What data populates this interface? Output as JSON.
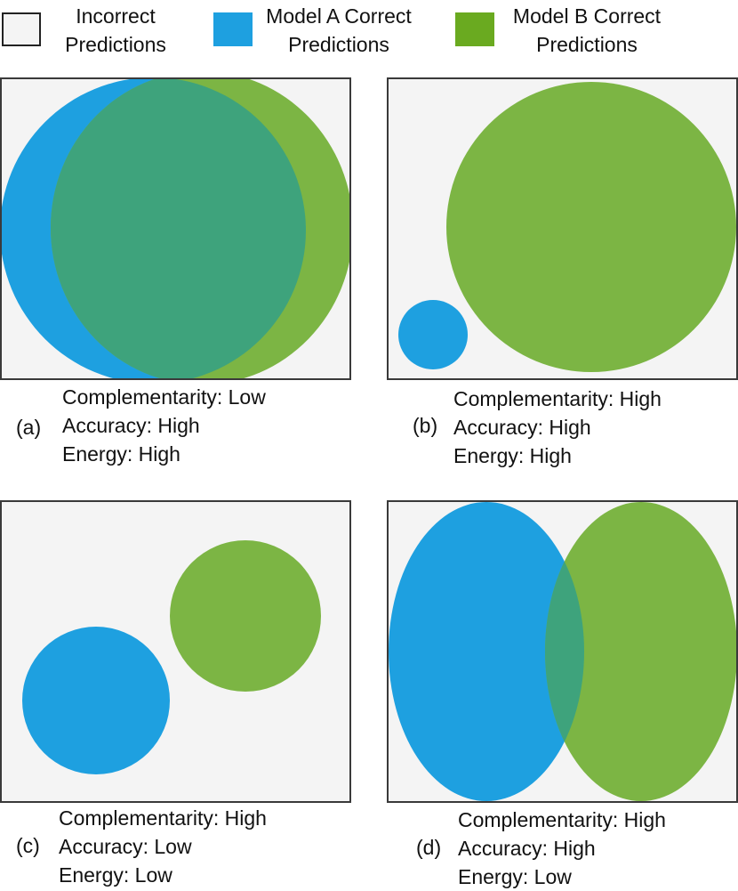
{
  "legend": {
    "incorrect": "Incorrect Predictions",
    "model_a": "Model A Correct Predictions",
    "model_b": "Model B Correct Predictions",
    "incorrect_color": "#f4f4f4",
    "model_a_color": "#1ea0e0",
    "model_b_color": "#6aaa20"
  },
  "colors": {
    "model_a": "#1ea0e0",
    "model_b": "#7cb544",
    "overlap": "#3ea37c"
  },
  "panels": [
    {
      "tag": "(a)",
      "lines": [
        "Complementarity: Low",
        "Accuracy: High",
        "Energy: High"
      ]
    },
    {
      "tag": "(b)",
      "lines": [
        "Complementarity: High",
        "Accuracy: High",
        "Energy: High"
      ]
    },
    {
      "tag": "(c)",
      "lines": [
        "Complementarity: High",
        "Accuracy: Low",
        "Energy: Low"
      ]
    },
    {
      "tag": "(d)",
      "lines": [
        "Complementarity: High",
        "Accuracy: High",
        "Energy: Low"
      ]
    }
  ]
}
